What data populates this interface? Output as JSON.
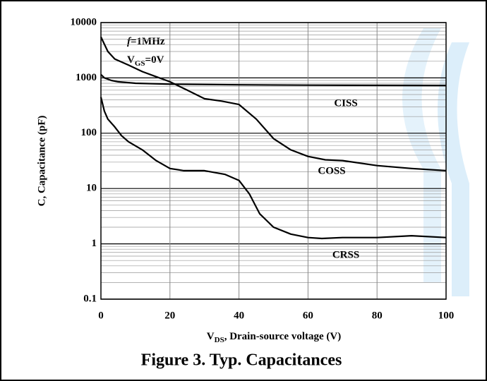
{
  "chart_data": {
    "type": "line",
    "caption": "Figure 3. Typ. Capacitances",
    "ylabel": "C, Capacitance (pF)",
    "xlabel": {
      "main": "V",
      "sub": "DS",
      "rest": ", Drain-source voltage (V)"
    },
    "annotation": {
      "f": "f",
      "freq": "=1MHz",
      "v": "V",
      "vsub": "GS",
      "vval": "=0V"
    },
    "log_y": true,
    "grid": true,
    "minor_grid": true,
    "xlim": [
      0,
      100
    ],
    "xticks": [
      0,
      20,
      40,
      60,
      80,
      100
    ],
    "ylim": [
      0.1,
      10000
    ],
    "yticks": [
      0.1,
      1,
      10,
      100,
      1000,
      10000
    ],
    "series": [
      {
        "name": "CISS",
        "color": "#000000",
        "x": [
          0,
          1,
          3,
          5,
          10,
          20,
          40,
          60,
          100
        ],
        "values": [
          1150,
          1000,
          900,
          850,
          800,
          770,
          750,
          740,
          730
        ]
      },
      {
        "name": "COSS",
        "color": "#000000",
        "x": [
          0,
          2,
          4,
          8,
          12,
          16,
          20,
          25,
          30,
          35,
          40,
          45,
          50,
          55,
          60,
          65,
          70,
          80,
          90,
          100
        ],
        "values": [
          5500,
          3000,
          2200,
          1700,
          1300,
          1050,
          850,
          600,
          420,
          380,
          330,
          180,
          80,
          50,
          38,
          33,
          32,
          26,
          23,
          21
        ]
      },
      {
        "name": "CRSS",
        "color": "#000000",
        "x": [
          0,
          1,
          2,
          4,
          6,
          8,
          12,
          16,
          20,
          24,
          30,
          36,
          40,
          43,
          46,
          50,
          55,
          60,
          64,
          70,
          80,
          90,
          100
        ],
        "values": [
          450,
          250,
          180,
          130,
          90,
          70,
          50,
          32,
          23,
          21,
          21,
          18,
          14,
          8,
          3.5,
          2,
          1.5,
          1.3,
          1.25,
          1.3,
          1.3,
          1.4,
          1.3
        ]
      }
    ]
  }
}
